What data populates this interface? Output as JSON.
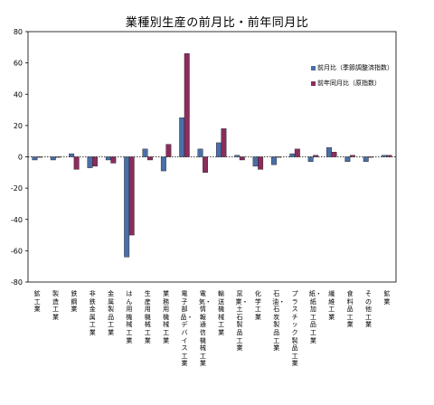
{
  "chart_data": {
    "type": "bar",
    "title": "業種別生産の前月比・前年同月比",
    "ylim": [
      -80,
      80
    ],
    "yticks": [
      -80,
      -60,
      -40,
      -20,
      0,
      20,
      40,
      60,
      80
    ],
    "categories": [
      "鉱工業",
      "製造工業",
      "鉄鋼業",
      "非鉄金属工業",
      "金属製品工業",
      "はん用機械工業",
      "生産用機械工業",
      "業務用機械工業",
      "電子部品・デバイス工業",
      "電気・情報通信機械工業",
      "輸送機械工業",
      "窯業・土石製品工業",
      "化学工業",
      "石油・石炭製品工業",
      "プラスチック製品工業",
      "紙・紙加工品工業",
      "繊維工業",
      "食料品工業",
      "その他工業",
      "鉱業"
    ],
    "series": [
      {
        "name": "前月比（季節調整済指数）",
        "color": "#4a6fa8",
        "values": [
          -2,
          -2,
          2,
          -7,
          -2,
          -64,
          5,
          -9,
          25,
          5,
          9,
          1,
          -6,
          -5,
          2,
          -3,
          6,
          -3,
          -3,
          1
        ]
      },
      {
        "name": "前年同月比（原指数）",
        "color": "#8b2d5c",
        "values": [
          0,
          0,
          -8,
          -6,
          -4,
          -50,
          -2,
          8,
          66,
          -10,
          18,
          -2,
          -8,
          0,
          5,
          1,
          3,
          1,
          0,
          1
        ]
      }
    ]
  }
}
